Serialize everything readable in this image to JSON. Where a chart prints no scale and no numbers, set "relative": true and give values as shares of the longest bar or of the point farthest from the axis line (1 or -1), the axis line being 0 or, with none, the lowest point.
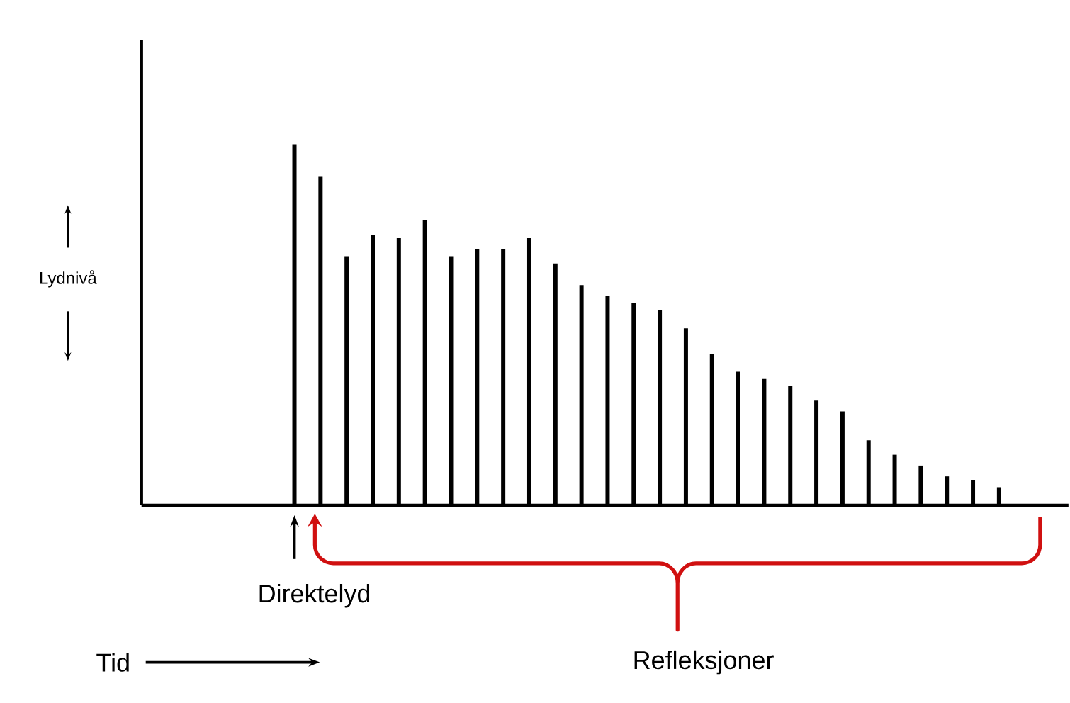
{
  "chart_data": {
    "type": "bar",
    "relative": true,
    "annotations": [
      "Direktelyd",
      "Refleksjoner",
      "Lydnivå",
      "Tid"
    ],
    "color": "#000000",
    "categories": [
      null,
      null,
      null,
      null,
      null,
      null,
      null,
      null,
      null,
      null,
      null,
      null,
      null,
      null,
      null,
      null,
      null,
      null,
      null,
      null,
      null,
      null,
      null,
      null,
      null,
      null,
      null,
      null
    ],
    "values": [
      1.0,
      0.91,
      0.69,
      0.75,
      0.74,
      0.79,
      0.69,
      0.71,
      0.71,
      0.74,
      0.67,
      0.61,
      0.58,
      0.56,
      0.54,
      0.49,
      0.42,
      0.37,
      0.35,
      0.33,
      0.29,
      0.26,
      0.18,
      0.14,
      0.11,
      0.08,
      0.07,
      0.05
    ]
  }
}
